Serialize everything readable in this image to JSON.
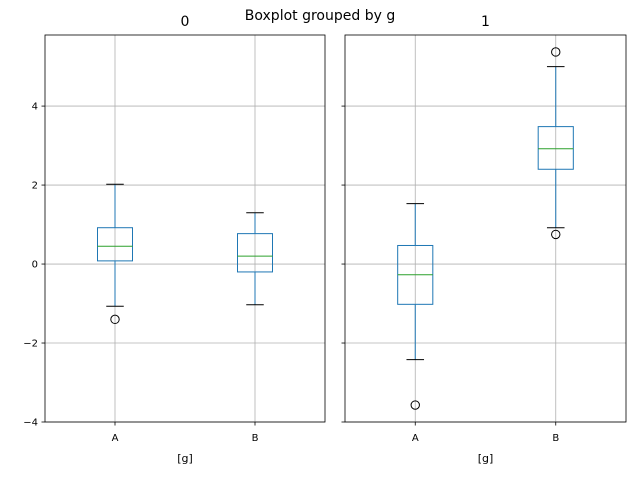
{
  "suptitle": "Boxplot grouped by g",
  "chart_data": [
    {
      "type": "box",
      "title": "0",
      "xlabel": "[g]",
      "ylabel": "",
      "categories": [
        "A",
        "B"
      ],
      "ylim": [
        -4,
        5.8
      ],
      "yticks": [
        -4,
        -2,
        0,
        2,
        4
      ],
      "ytick_labels": [
        "−4",
        "−2",
        "0",
        "2",
        "4"
      ],
      "grid": true,
      "boxes": [
        {
          "category": "A",
          "whisker_low": -1.07,
          "q1": 0.08,
          "median": 0.45,
          "q3": 0.92,
          "whisker_high": 2.02,
          "fliers": [
            -1.4
          ]
        },
        {
          "category": "B",
          "whisker_low": -1.03,
          "q1": -0.2,
          "median": 0.2,
          "q3": 0.77,
          "whisker_high": 1.3,
          "fliers": []
        }
      ]
    },
    {
      "type": "box",
      "title": "1",
      "xlabel": "[g]",
      "ylabel": "",
      "categories": [
        "A",
        "B"
      ],
      "ylim": [
        -4,
        5.8
      ],
      "yticks": [
        -4,
        -2,
        0,
        2,
        4
      ],
      "ytick_labels": [
        "",
        "",
        "",
        "",
        ""
      ],
      "grid": true,
      "boxes": [
        {
          "category": "A",
          "whisker_low": -2.42,
          "q1": -1.02,
          "median": -0.27,
          "q3": 0.47,
          "whisker_high": 1.53,
          "fliers": [
            -3.57
          ]
        },
        {
          "category": "B",
          "whisker_low": 0.92,
          "q1": 2.4,
          "median": 2.92,
          "q3": 3.48,
          "whisker_high": 5.0,
          "fliers": [
            0.75,
            5.37
          ]
        }
      ]
    }
  ],
  "colors": {
    "box": "#1f77b4",
    "median": "#2ca02c",
    "whisker_cap": "#000000",
    "flier": "#000000",
    "grid": "#b0b0b0",
    "axes": "#000000"
  }
}
